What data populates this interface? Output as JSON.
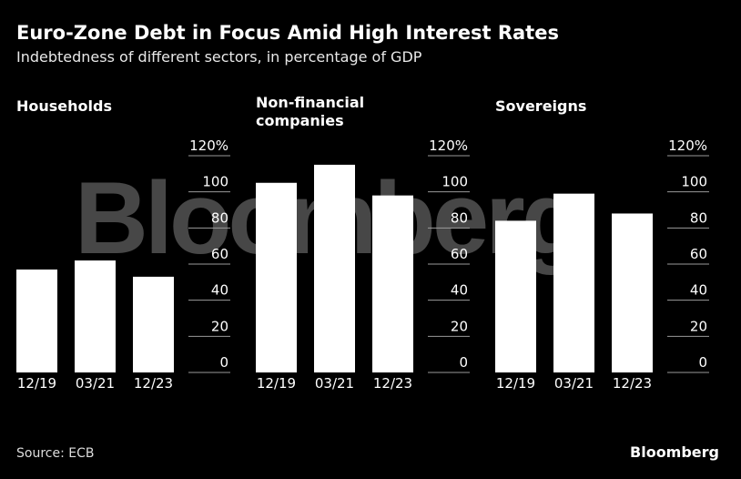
{
  "header": {
    "title": "Euro-Zone Debt in Focus Amid High Interest Rates",
    "subtitle": "Indebtedness of different sectors, in percentage of GDP"
  },
  "footer": {
    "source": "Source: ECB",
    "logo": "Bloomberg"
  },
  "watermark": "Bloomberg",
  "colors": {
    "background": "#000000",
    "bar": "#ffffff",
    "text": "#ffffff"
  },
  "chart_data": [
    {
      "type": "bar",
      "title": "Households",
      "categories": [
        "12/19",
        "03/21",
        "12/23"
      ],
      "values": [
        57,
        62,
        53
      ],
      "ylim": [
        0,
        120
      ],
      "yticks": [
        0,
        20,
        40,
        60,
        80,
        100,
        120
      ],
      "ytick_labels": [
        "0",
        "20",
        "40",
        "60",
        "80",
        "100",
        "120%"
      ],
      "grid": true
    },
    {
      "type": "bar",
      "title": "Non-financial companies",
      "categories": [
        "12/19",
        "03/21",
        "12/23"
      ],
      "values": [
        105,
        115,
        98
      ],
      "ylim": [
        0,
        120
      ],
      "yticks": [
        0,
        20,
        40,
        60,
        80,
        100,
        120
      ],
      "ytick_labels": [
        "0",
        "20",
        "40",
        "60",
        "80",
        "100",
        "120%"
      ],
      "grid": true
    },
    {
      "type": "bar",
      "title": "Sovereigns",
      "categories": [
        "12/19",
        "03/21",
        "12/23"
      ],
      "values": [
        84,
        99,
        88
      ],
      "ylim": [
        0,
        120
      ],
      "yticks": [
        0,
        20,
        40,
        60,
        80,
        100,
        120
      ],
      "ytick_labels": [
        "0",
        "20",
        "40",
        "60",
        "80",
        "100",
        "120%"
      ],
      "grid": true
    }
  ]
}
